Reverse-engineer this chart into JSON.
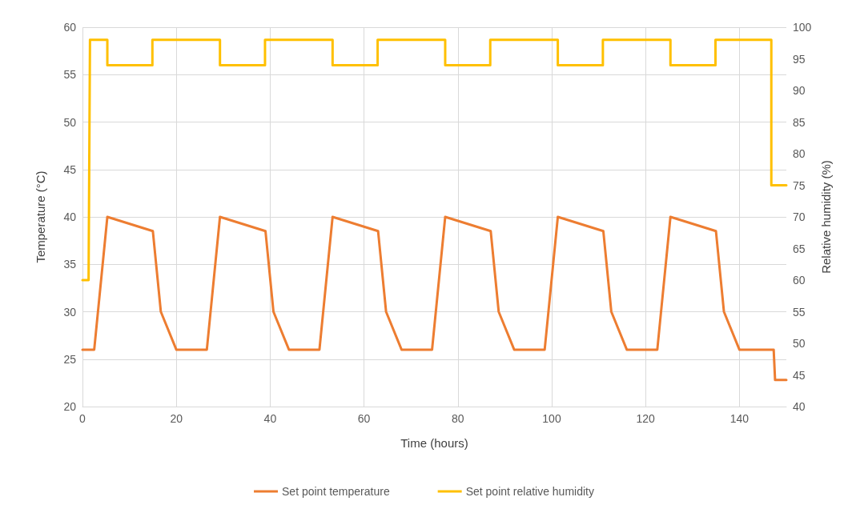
{
  "chart_data": {
    "type": "line",
    "xlabel": "Time (hours)",
    "ylabel": "Temperature (°C)",
    "y2label": "Relative humidity (%)",
    "xlim": [
      0,
      150
    ],
    "xticks": [
      0,
      20,
      40,
      60,
      80,
      100,
      120,
      140
    ],
    "ylim": [
      20,
      60
    ],
    "yticks": [
      20,
      25,
      30,
      35,
      40,
      45,
      50,
      55,
      60
    ],
    "y2lim": [
      40,
      100
    ],
    "y2ticks": [
      40,
      45,
      50,
      55,
      60,
      65,
      70,
      75,
      80,
      85,
      90,
      95,
      100
    ],
    "grid": true,
    "legend": "bottom",
    "marker": "none",
    "line_style": "solid",
    "series": [
      {
        "name": "Set point temperature",
        "color": "#ed7d31",
        "x": [
          0,
          2.5,
          5.3,
          15,
          16.7,
          20,
          26.5,
          29.3,
          39,
          40.7,
          44,
          50.5,
          53.3,
          63,
          64.7,
          68,
          74.5,
          77.3,
          87,
          88.7,
          92,
          98.5,
          101.3,
          111,
          112.7,
          116,
          122.5,
          125.3,
          135,
          136.7,
          140,
          147.3,
          147.6,
          150
        ],
        "values": [
          26,
          26,
          40,
          38.5,
          30,
          26,
          26,
          40,
          38.5,
          30,
          26,
          26,
          40,
          38.5,
          30,
          26,
          26,
          40,
          38.5,
          30,
          26,
          26,
          40,
          38.5,
          30,
          26,
          26,
          40,
          38.5,
          30,
          26,
          26,
          22.8,
          22.8
        ]
      },
      {
        "name": "Set point relative humidity",
        "color": "#ffc000",
        "axis": "y2",
        "x": [
          0,
          1.3,
          1.6,
          5.3,
          5.3,
          14.9,
          14.9,
          29.3,
          29.3,
          38.9,
          38.9,
          53.3,
          53.3,
          62.9,
          62.9,
          77.3,
          77.3,
          86.9,
          86.9,
          101.3,
          101.3,
          110.9,
          110.9,
          125.3,
          125.3,
          134.9,
          134.9,
          146.8,
          146.8,
          150
        ],
        "values": [
          60,
          60,
          98,
          98,
          94,
          94,
          98,
          98,
          94,
          94,
          98,
          98,
          94,
          94,
          98,
          98,
          94,
          94,
          98,
          98,
          94,
          94,
          98,
          98,
          94,
          94,
          98,
          98,
          75,
          75
        ]
      }
    ]
  }
}
